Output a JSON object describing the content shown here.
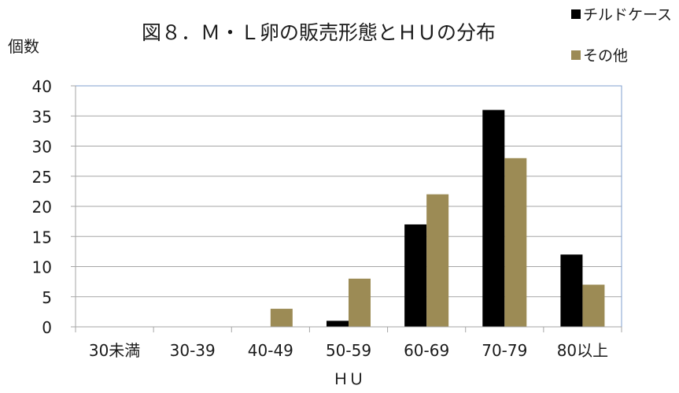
{
  "chart_data": {
    "type": "bar",
    "title": "図８．Ｍ・Ｌ卵の販売形態とＨＵの分布",
    "ylabel": "個数",
    "xlabel": "ＨＵ",
    "categories": [
      "30未満",
      "30-39",
      "40-49",
      "50-59",
      "60-69",
      "70-79",
      "80以上"
    ],
    "series": [
      {
        "name": "チルドケース",
        "color": "#000000",
        "values": [
          0,
          0,
          0,
          1,
          17,
          36,
          12
        ]
      },
      {
        "name": "その他",
        "color": "#9c8b55",
        "values": [
          0,
          0,
          3,
          8,
          22,
          28,
          7
        ]
      }
    ],
    "ylim": [
      0,
      40
    ],
    "yticks": [
      0,
      5,
      10,
      15,
      20,
      25,
      30,
      35,
      40
    ],
    "grid": true,
    "legend_position": "top-right",
    "colors": {
      "grid": "#a6a6a6",
      "plot_border": "#7f9fcf"
    }
  }
}
